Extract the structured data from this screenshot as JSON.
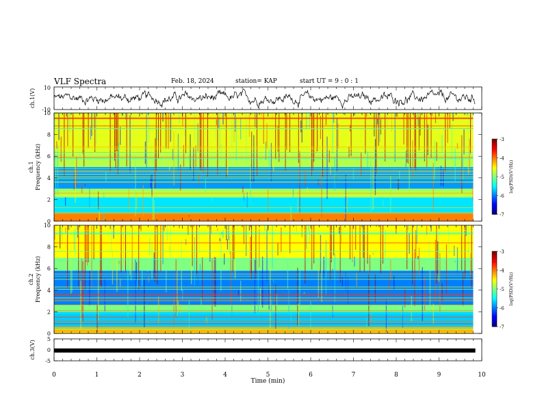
{
  "header": {
    "title": "VLF Spectra",
    "date": "Feb. 18, 2024",
    "station": "station= KAP",
    "start_time": "start UT =  9 : 0  : 1"
  },
  "chart_data": [
    {
      "type": "line",
      "panel": "waveform-ch1",
      "ylabel": "ch.1(V)",
      "ylim": [
        -10,
        10
      ],
      "yticks": [
        -10,
        10
      ],
      "xlim": [
        0,
        10
      ],
      "series": [
        {
          "values_description_free": true
        }
      ]
    },
    {
      "type": "heatmap",
      "panel": "spectrogram-ch1",
      "ylabel_top": "ch.1",
      "ylabel": "Frequency (kHz)",
      "ylim": [
        0,
        10
      ],
      "yticks": [
        0,
        2,
        4,
        6,
        8,
        10
      ],
      "xlim": [
        0,
        9.8
      ],
      "colorbar": {
        "label": "log(PSD)(V²/Hz)",
        "range": [
          -7,
          -3
        ],
        "ticks": [
          -7,
          -6,
          -5,
          -4,
          -3
        ]
      },
      "bands": [
        {
          "fmin": 0.0,
          "fmax": 0.8,
          "level": -4.0
        },
        {
          "fmin": 0.8,
          "fmax": 2.2,
          "level": -5.6
        },
        {
          "fmin": 2.2,
          "fmax": 3.0,
          "level": -4.8
        },
        {
          "fmin": 3.0,
          "fmax": 5.0,
          "level": -5.9
        },
        {
          "fmin": 5.0,
          "fmax": 6.2,
          "level": -4.8
        },
        {
          "fmin": 6.2,
          "fmax": 10.0,
          "level": -4.6
        }
      ]
    },
    {
      "type": "heatmap",
      "panel": "spectrogram-ch2",
      "ylabel_top": "ch.2",
      "ylabel": "Frequency (kHz)",
      "ylim": [
        0,
        10
      ],
      "yticks": [
        0,
        2,
        4,
        6,
        8,
        10
      ],
      "xlim": [
        0,
        9.8
      ],
      "colorbar": {
        "label": "log(PSD)(V²/Hz)",
        "range": [
          -7,
          -3
        ],
        "ticks": [
          -7,
          -6,
          -5,
          -4,
          -3
        ]
      },
      "bands": [
        {
          "fmin": 0.0,
          "fmax": 0.6,
          "level": -4.2
        },
        {
          "fmin": 0.6,
          "fmax": 2.0,
          "level": -5.7
        },
        {
          "fmin": 2.0,
          "fmax": 2.6,
          "level": -5.0
        },
        {
          "fmin": 2.6,
          "fmax": 5.8,
          "level": -6.0
        },
        {
          "fmin": 5.8,
          "fmax": 7.0,
          "level": -5.0
        },
        {
          "fmin": 7.0,
          "fmax": 10.0,
          "level": -4.5
        }
      ]
    },
    {
      "type": "line",
      "panel": "waveform-ch3",
      "ylabel": "ch.3(V)",
      "ylim": [
        -5,
        5
      ],
      "yticks": [
        -5,
        0,
        5
      ],
      "xlim": [
        0,
        10
      ],
      "series": [
        {
          "values": [
            -0.3,
            -0.3
          ]
        }
      ]
    }
  ],
  "xaxis": {
    "label": "Time (min)",
    "ticks": [
      "0",
      "1",
      "2",
      "3",
      "4",
      "5",
      "6",
      "7",
      "8",
      "9",
      "10"
    ],
    "range": [
      0,
      10
    ]
  }
}
